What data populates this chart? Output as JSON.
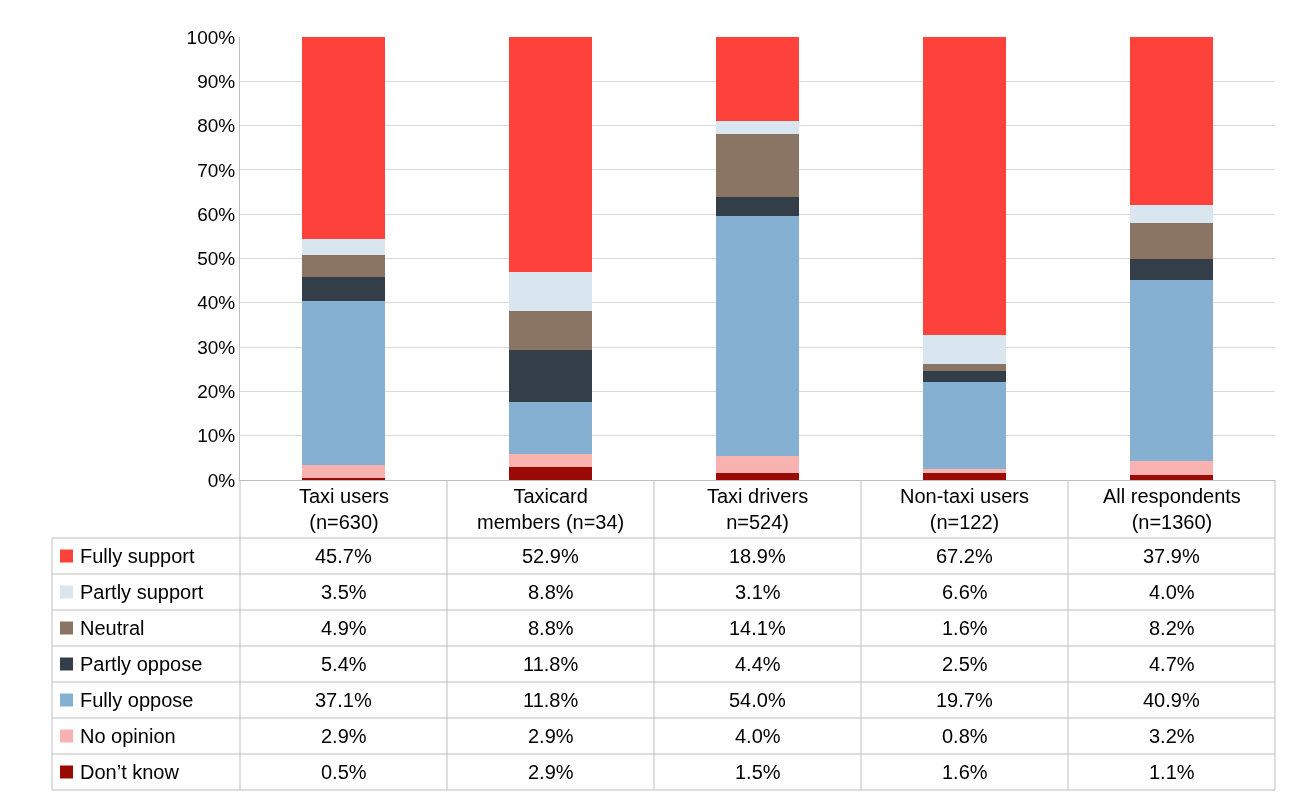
{
  "chart_data": {
    "type": "bar",
    "stacked": true,
    "categories": [
      "Taxi users\n(n=630)",
      "Taxicard\nmembers (n=34)",
      "Taxi drivers\nn=524)",
      "Non-taxi users\n(n=122)",
      "All respondents\n(n=1360)"
    ],
    "series": [
      {
        "name": "Don’t know",
        "color": "#9b0a05",
        "values": [
          0.5,
          2.9,
          1.5,
          1.6,
          1.1
        ],
        "value_labels": [
          "0.5%",
          "2.9%",
          "1.5%",
          "1.6%",
          "1.1%"
        ]
      },
      {
        "name": "No opinion",
        "color": "#f8b2b0",
        "values": [
          2.9,
          2.9,
          4.0,
          0.8,
          3.2
        ],
        "value_labels": [
          "2.9%",
          "2.9%",
          "4.0%",
          "0.8%",
          "3.2%"
        ]
      },
      {
        "name": "Fully oppose",
        "color": "#86b0d2",
        "values": [
          37.1,
          11.8,
          54.0,
          19.7,
          40.9
        ],
        "value_labels": [
          "37.1%",
          "11.8%",
          "54.0%",
          "19.7%",
          "40.9%"
        ]
      },
      {
        "name": "Partly oppose",
        "color": "#343e48",
        "values": [
          5.4,
          11.8,
          4.4,
          2.5,
          4.7
        ],
        "value_labels": [
          "5.4%",
          "11.8%",
          "4.4%",
          "2.5%",
          "4.7%"
        ]
      },
      {
        "name": "Neutral",
        "color": "#8a7464",
        "values": [
          4.9,
          8.8,
          14.1,
          1.6,
          8.2
        ],
        "value_labels": [
          "4.9%",
          "8.8%",
          "14.1%",
          "1.6%",
          "8.2%"
        ]
      },
      {
        "name": "Partly support",
        "color": "#d9e5ef",
        "values": [
          3.5,
          8.8,
          3.1,
          6.6,
          4.0
        ],
        "value_labels": [
          "3.5%",
          "8.8%",
          "3.1%",
          "6.6%",
          "4.0%"
        ]
      },
      {
        "name": "Fully support",
        "color": "#fc423a",
        "values": [
          45.7,
          52.9,
          18.9,
          67.2,
          37.9
        ],
        "value_labels": [
          "45.7%",
          "52.9%",
          "18.9%",
          "67.2%",
          "37.9%"
        ]
      }
    ],
    "ylim": [
      0,
      100
    ],
    "yticks": [
      {
        "value": 0,
        "label": "0%"
      },
      {
        "value": 10,
        "label": "10%"
      },
      {
        "value": 20,
        "label": "20%"
      },
      {
        "value": 30,
        "label": "30%"
      },
      {
        "value": 40,
        "label": "40%"
      },
      {
        "value": 50,
        "label": "50%"
      },
      {
        "value": 60,
        "label": "60%"
      },
      {
        "value": 70,
        "label": "70%"
      },
      {
        "value": 80,
        "label": "80%"
      },
      {
        "value": 90,
        "label": "90%"
      },
      {
        "value": 100,
        "label": "100%"
      }
    ],
    "grid": "y",
    "legend": "bottom"
  }
}
